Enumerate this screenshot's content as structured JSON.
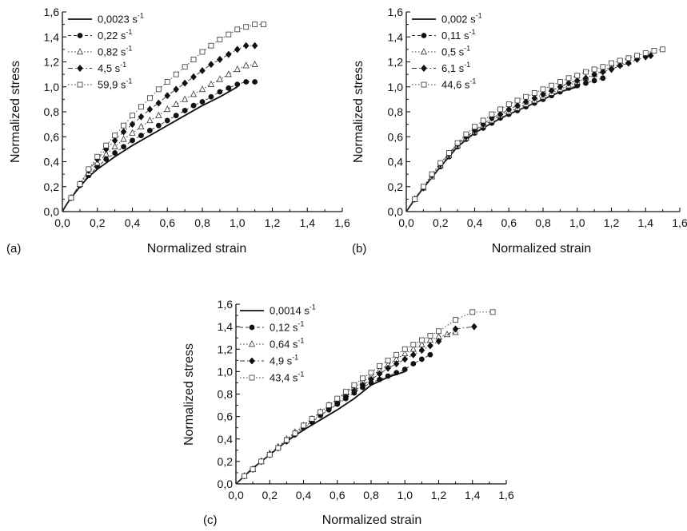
{
  "chart_data": [
    {
      "panel_label": "(a)",
      "type": "line",
      "xlabel": "Normalized strain",
      "ylabel": "Normalized stress",
      "xlim": [
        0.0,
        1.6
      ],
      "ylim": [
        0.0,
        1.6
      ],
      "x_tick_labels": [
        "0,0",
        "0,2",
        "0,4",
        "0,6",
        "0,8",
        "1,0",
        "1,2",
        "1,4",
        "1,6"
      ],
      "y_tick_labels": [
        "0,0",
        "0,2",
        "0,4",
        "0,6",
        "0,8",
        "1,0",
        "1,2",
        "1,4",
        "1,6"
      ],
      "legend_position": "top-left",
      "grid": false,
      "series": [
        {
          "name": "0,0023 s",
          "superscript": "-1",
          "marker": "none",
          "line": "solid",
          "x": [
            0.0,
            0.02,
            0.05,
            0.1,
            0.15,
            0.2,
            0.3,
            0.4,
            0.5,
            0.6,
            0.7,
            0.8,
            0.9,
            1.0
          ],
          "y": [
            0.0,
            0.05,
            0.11,
            0.2,
            0.28,
            0.34,
            0.44,
            0.53,
            0.61,
            0.69,
            0.77,
            0.85,
            0.92,
            1.0
          ]
        },
        {
          "name": "0,22 s",
          "superscript": "-1",
          "marker": "filled-circle",
          "line": "dashed",
          "x": [
            0.0,
            0.05,
            0.1,
            0.15,
            0.2,
            0.25,
            0.3,
            0.35,
            0.4,
            0.45,
            0.5,
            0.55,
            0.6,
            0.65,
            0.7,
            0.75,
            0.8,
            0.85,
            0.9,
            0.95,
            1.0,
            1.05,
            1.1
          ],
          "y": [
            0.0,
            0.11,
            0.21,
            0.29,
            0.36,
            0.42,
            0.47,
            0.52,
            0.57,
            0.61,
            0.65,
            0.69,
            0.73,
            0.77,
            0.81,
            0.85,
            0.88,
            0.92,
            0.96,
            0.99,
            1.02,
            1.04,
            1.04
          ]
        },
        {
          "name": "0,82 s",
          "superscript": "-1",
          "marker": "open-triangle",
          "line": "dotted",
          "x": [
            0.0,
            0.05,
            0.1,
            0.15,
            0.2,
            0.25,
            0.3,
            0.35,
            0.4,
            0.45,
            0.5,
            0.55,
            0.6,
            0.65,
            0.7,
            0.75,
            0.8,
            0.85,
            0.9,
            0.95,
            1.0,
            1.05,
            1.1
          ],
          "y": [
            0.0,
            0.11,
            0.22,
            0.31,
            0.39,
            0.46,
            0.52,
            0.58,
            0.63,
            0.68,
            0.73,
            0.77,
            0.82,
            0.86,
            0.9,
            0.94,
            0.98,
            1.02,
            1.06,
            1.1,
            1.14,
            1.17,
            1.18
          ]
        },
        {
          "name": "4,5 s",
          "superscript": "-1",
          "marker": "filled-diamond",
          "line": "dash-dot",
          "x": [
            0.0,
            0.05,
            0.1,
            0.15,
            0.2,
            0.25,
            0.3,
            0.35,
            0.4,
            0.45,
            0.5,
            0.55,
            0.6,
            0.65,
            0.7,
            0.75,
            0.8,
            0.85,
            0.9,
            0.95,
            1.0,
            1.05,
            1.1
          ],
          "y": [
            0.0,
            0.11,
            0.22,
            0.33,
            0.42,
            0.5,
            0.57,
            0.64,
            0.7,
            0.76,
            0.82,
            0.87,
            0.93,
            0.98,
            1.03,
            1.08,
            1.13,
            1.18,
            1.22,
            1.26,
            1.3,
            1.33,
            1.33
          ]
        },
        {
          "name": "59,9 s",
          "superscript": "-1",
          "marker": "open-square",
          "line": "dotted",
          "x": [
            0.0,
            0.05,
            0.1,
            0.15,
            0.2,
            0.25,
            0.3,
            0.35,
            0.4,
            0.45,
            0.5,
            0.55,
            0.6,
            0.65,
            0.7,
            0.75,
            0.8,
            0.85,
            0.9,
            0.95,
            1.0,
            1.05,
            1.1,
            1.15
          ],
          "y": [
            0.0,
            0.11,
            0.22,
            0.34,
            0.44,
            0.53,
            0.61,
            0.69,
            0.77,
            0.84,
            0.91,
            0.98,
            1.04,
            1.1,
            1.16,
            1.22,
            1.28,
            1.33,
            1.38,
            1.42,
            1.46,
            1.48,
            1.5,
            1.5
          ]
        }
      ]
    },
    {
      "panel_label": "(b)",
      "type": "line",
      "xlabel": "Normalized strain",
      "ylabel": "Normalized stress",
      "xlim": [
        0.0,
        1.6
      ],
      "ylim": [
        0.0,
        1.6
      ],
      "x_tick_labels": [
        "0,0",
        "0,2",
        "0,4",
        "0,6",
        "0,8",
        "1,0",
        "1,2",
        "1,4",
        "1,6"
      ],
      "y_tick_labels": [
        "0,0",
        "0,2",
        "0,4",
        "0,6",
        "0,8",
        "1,0",
        "1,2",
        "1,4",
        "1,6"
      ],
      "legend_position": "top-left",
      "grid": false,
      "series": [
        {
          "name": "0,002 s",
          "superscript": "-1",
          "marker": "none",
          "line": "solid",
          "x": [
            0.0,
            0.05,
            0.1,
            0.2,
            0.3,
            0.4,
            0.5,
            0.6,
            0.7,
            0.8,
            0.9,
            1.0
          ],
          "y": [
            0.0,
            0.1,
            0.19,
            0.36,
            0.52,
            0.63,
            0.71,
            0.78,
            0.84,
            0.9,
            0.96,
            1.0
          ]
        },
        {
          "name": "0,11 s",
          "superscript": "-1",
          "marker": "filled-circle",
          "line": "dashed",
          "x": [
            0.0,
            0.05,
            0.1,
            0.15,
            0.2,
            0.25,
            0.3,
            0.35,
            0.4,
            0.45,
            0.5,
            0.55,
            0.6,
            0.65,
            0.7,
            0.75,
            0.8,
            0.85,
            0.9,
            0.95,
            1.0,
            1.05,
            1.1,
            1.15
          ],
          "y": [
            0.0,
            0.1,
            0.19,
            0.28,
            0.36,
            0.44,
            0.52,
            0.58,
            0.63,
            0.67,
            0.71,
            0.75,
            0.78,
            0.81,
            0.84,
            0.87,
            0.9,
            0.93,
            0.96,
            0.99,
            1.01,
            1.03,
            1.05,
            1.07
          ]
        },
        {
          "name": "0,5 s",
          "superscript": "-1",
          "marker": "open-triangle",
          "line": "dotted",
          "x": [
            0.0,
            0.05,
            0.1,
            0.15,
            0.2,
            0.25,
            0.3,
            0.35,
            0.4,
            0.45,
            0.5,
            0.55,
            0.6,
            0.65,
            0.7,
            0.75,
            0.8,
            0.85,
            0.9,
            0.95,
            1.0,
            1.05,
            1.1,
            1.15,
            1.2,
            1.25,
            1.3
          ],
          "y": [
            0.0,
            0.1,
            0.19,
            0.28,
            0.37,
            0.45,
            0.53,
            0.59,
            0.64,
            0.69,
            0.73,
            0.77,
            0.8,
            0.83,
            0.86,
            0.89,
            0.92,
            0.95,
            0.98,
            1.01,
            1.04,
            1.07,
            1.1,
            1.13,
            1.16,
            1.18,
            1.2
          ]
        },
        {
          "name": "6,1 s",
          "superscript": "-1",
          "marker": "filled-diamond",
          "line": "dash-dot",
          "x": [
            0.0,
            0.05,
            0.1,
            0.15,
            0.2,
            0.25,
            0.3,
            0.35,
            0.4,
            0.45,
            0.5,
            0.55,
            0.6,
            0.65,
            0.7,
            0.75,
            0.8,
            0.85,
            0.9,
            0.95,
            1.0,
            1.05,
            1.1,
            1.15,
            1.2,
            1.25,
            1.3,
            1.35,
            1.4,
            1.43
          ],
          "y": [
            0.0,
            0.1,
            0.19,
            0.29,
            0.38,
            0.46,
            0.54,
            0.6,
            0.65,
            0.7,
            0.75,
            0.78,
            0.82,
            0.85,
            0.88,
            0.91,
            0.94,
            0.97,
            1.0,
            1.03,
            1.05,
            1.07,
            1.1,
            1.12,
            1.14,
            1.17,
            1.19,
            1.22,
            1.24,
            1.25
          ]
        },
        {
          "name": "44,6 s",
          "superscript": "-1",
          "marker": "open-square",
          "line": "dotted",
          "x": [
            0.0,
            0.05,
            0.1,
            0.15,
            0.2,
            0.25,
            0.3,
            0.35,
            0.4,
            0.45,
            0.5,
            0.55,
            0.6,
            0.65,
            0.7,
            0.75,
            0.8,
            0.85,
            0.9,
            0.95,
            1.0,
            1.05,
            1.1,
            1.15,
            1.2,
            1.25,
            1.3,
            1.35,
            1.4,
            1.45,
            1.5
          ],
          "y": [
            0.0,
            0.1,
            0.2,
            0.3,
            0.39,
            0.47,
            0.55,
            0.62,
            0.68,
            0.73,
            0.78,
            0.82,
            0.86,
            0.89,
            0.92,
            0.95,
            0.98,
            1.01,
            1.04,
            1.07,
            1.09,
            1.12,
            1.14,
            1.16,
            1.19,
            1.21,
            1.23,
            1.25,
            1.27,
            1.29,
            1.3
          ]
        }
      ]
    },
    {
      "panel_label": "(c)",
      "type": "line",
      "xlabel": "Normalized strain",
      "ylabel": "Normalized stress",
      "xlim": [
        0.0,
        1.6
      ],
      "ylim": [
        0.0,
        1.6
      ],
      "x_tick_labels": [
        "0,0",
        "0,2",
        "0,4",
        "0,6",
        "0,8",
        "1,0",
        "1,2",
        "1,4",
        "1,6"
      ],
      "y_tick_labels": [
        "0,0",
        "0,2",
        "0,4",
        "0,6",
        "0,8",
        "1,0",
        "1,2",
        "1,4",
        "1,6"
      ],
      "legend_position": "top-left",
      "grid": false,
      "series": [
        {
          "name": "0,0014 s",
          "superscript": "-1",
          "marker": "none",
          "line": "solid",
          "x": [
            0.0,
            0.05,
            0.1,
            0.2,
            0.3,
            0.4,
            0.5,
            0.6,
            0.7,
            0.8,
            0.9,
            1.0
          ],
          "y": [
            0.0,
            0.07,
            0.14,
            0.26,
            0.38,
            0.48,
            0.57,
            0.66,
            0.76,
            0.88,
            0.95,
            1.0
          ]
        },
        {
          "name": "0,12 s",
          "superscript": "-1",
          "marker": "filled-circle",
          "line": "dashed",
          "x": [
            0.0,
            0.05,
            0.1,
            0.15,
            0.2,
            0.25,
            0.3,
            0.35,
            0.4,
            0.45,
            0.5,
            0.55,
            0.6,
            0.65,
            0.7,
            0.75,
            0.8,
            0.85,
            0.9,
            0.95,
            1.0,
            1.05,
            1.1,
            1.15
          ],
          "y": [
            0.0,
            0.07,
            0.13,
            0.2,
            0.26,
            0.32,
            0.38,
            0.44,
            0.5,
            0.55,
            0.61,
            0.66,
            0.71,
            0.76,
            0.81,
            0.86,
            0.9,
            0.93,
            0.96,
            0.99,
            1.02,
            1.07,
            1.11,
            1.15
          ]
        },
        {
          "name": "0,64 s",
          "superscript": "-1",
          "marker": "open-triangle",
          "line": "dotted",
          "x": [
            0.0,
            0.05,
            0.1,
            0.15,
            0.2,
            0.25,
            0.3,
            0.35,
            0.4,
            0.45,
            0.5,
            0.55,
            0.6,
            0.65,
            0.7,
            0.75,
            0.8,
            0.85,
            0.9,
            0.95,
            1.0,
            1.05,
            1.1,
            1.15,
            1.2,
            1.25,
            1.3
          ],
          "y": [
            0.0,
            0.07,
            0.13,
            0.2,
            0.27,
            0.33,
            0.4,
            0.46,
            0.52,
            0.58,
            0.64,
            0.7,
            0.75,
            0.81,
            0.86,
            0.91,
            0.96,
            1.01,
            1.06,
            1.11,
            1.16,
            1.2,
            1.24,
            1.28,
            1.31,
            1.33,
            1.35
          ]
        },
        {
          "name": "4,9 s",
          "superscript": "-1",
          "marker": "filled-diamond",
          "line": "dash-dot",
          "x": [
            0.0,
            0.05,
            0.1,
            0.15,
            0.2,
            0.25,
            0.3,
            0.35,
            0.4,
            0.45,
            0.5,
            0.55,
            0.6,
            0.65,
            0.7,
            0.75,
            0.8,
            0.85,
            0.9,
            0.95,
            1.0,
            1.05,
            1.1,
            1.15,
            1.2,
            1.3,
            1.41
          ],
          "y": [
            0.0,
            0.07,
            0.13,
            0.2,
            0.26,
            0.32,
            0.38,
            0.44,
            0.5,
            0.56,
            0.62,
            0.67,
            0.72,
            0.78,
            0.83,
            0.88,
            0.93,
            0.98,
            1.03,
            1.07,
            1.11,
            1.15,
            1.19,
            1.23,
            1.27,
            1.38,
            1.4
          ]
        },
        {
          "name": "43,4 s",
          "superscript": "-1",
          "marker": "open-square",
          "line": "dotted",
          "x": [
            0.0,
            0.05,
            0.1,
            0.15,
            0.2,
            0.25,
            0.3,
            0.35,
            0.4,
            0.45,
            0.5,
            0.55,
            0.6,
            0.65,
            0.7,
            0.75,
            0.8,
            0.85,
            0.9,
            0.95,
            1.0,
            1.05,
            1.1,
            1.15,
            1.2,
            1.3,
            1.4,
            1.52
          ],
          "y": [
            0.0,
            0.07,
            0.13,
            0.2,
            0.26,
            0.32,
            0.39,
            0.45,
            0.52,
            0.58,
            0.64,
            0.7,
            0.76,
            0.82,
            0.88,
            0.94,
            0.99,
            1.05,
            1.1,
            1.15,
            1.2,
            1.24,
            1.28,
            1.32,
            1.36,
            1.46,
            1.53,
            1.53
          ]
        }
      ]
    }
  ]
}
